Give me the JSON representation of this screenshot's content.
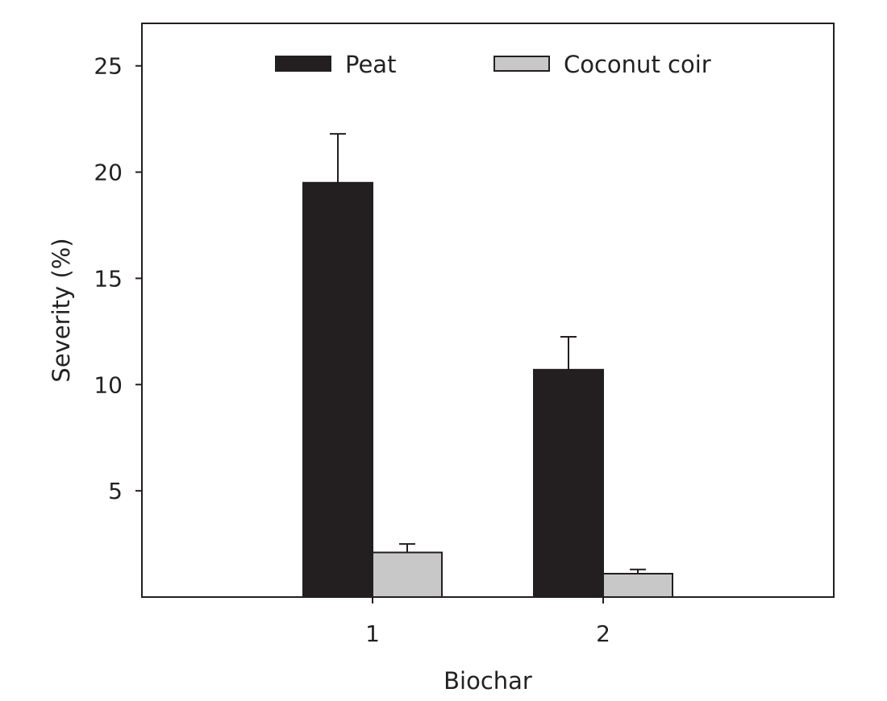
{
  "chart_data": {
    "type": "bar",
    "title": "",
    "xlabel": "Biochar",
    "ylabel": "Severity (%)",
    "categories": [
      "1",
      "2"
    ],
    "series": [
      {
        "name": "Peat",
        "color": "#231f20",
        "values": [
          19.5,
          10.7
        ],
        "error": [
          2.3,
          1.55
        ]
      },
      {
        "name": "Coconut coir",
        "color": "#c8c8c8",
        "values": [
          2.1,
          1.1
        ],
        "error": [
          0.4,
          0.2
        ]
      }
    ],
    "ylim": [
      0,
      27
    ],
    "yticks": [
      5,
      10,
      15,
      20,
      25
    ],
    "grid": false,
    "legend_position": "top"
  }
}
